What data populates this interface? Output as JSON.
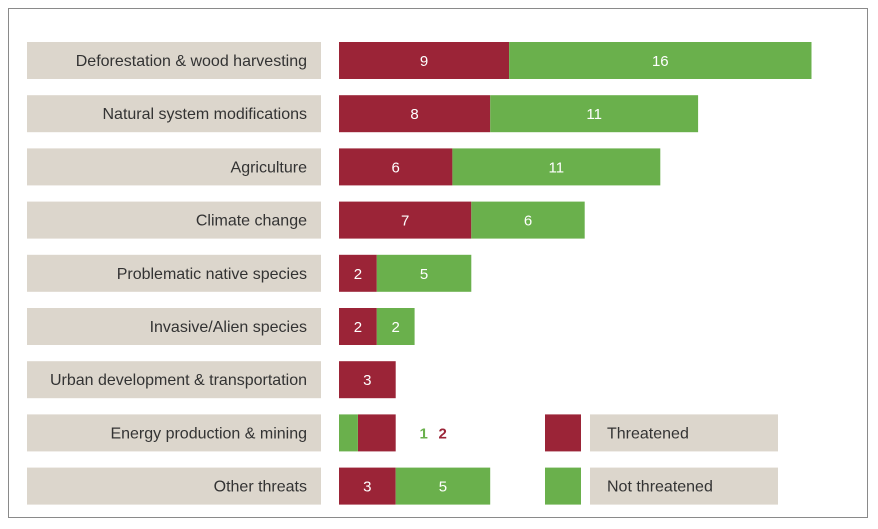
{
  "chart_data": {
    "type": "bar",
    "orientation": "horizontal",
    "stacked": true,
    "categories": [
      "Deforestation & wood harvesting",
      "Natural system modifications",
      "Agriculture",
      "Climate change",
      "Problematic native species",
      "Invasive/Alien species",
      "Urban development & transportation",
      "Energy production & mining",
      "Other threats"
    ],
    "series": [
      {
        "name": "Threatened",
        "color": "#9b2437",
        "values": [
          9,
          8,
          6,
          7,
          2,
          2,
          3,
          2,
          3
        ]
      },
      {
        "name": "Not threatened",
        "color": "#6ab04c",
        "values": [
          16,
          11,
          11,
          6,
          5,
          2,
          0,
          1,
          5
        ]
      }
    ],
    "legend": {
      "placement": "bottom-right",
      "entries": [
        "Threatened",
        "Not threatened"
      ]
    },
    "grid": false
  }
}
